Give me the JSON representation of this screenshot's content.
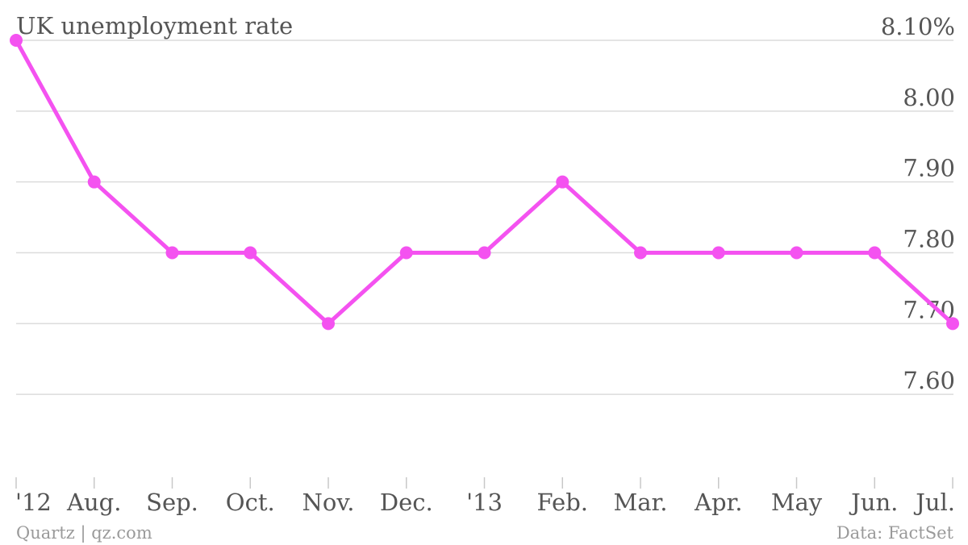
{
  "chart_data": {
    "type": "line",
    "title": "UK unemployment rate",
    "categories": [
      "'12",
      "Aug.",
      "Sep.",
      "Oct.",
      "Nov.",
      "Dec.",
      "'13",
      "Feb.",
      "Mar.",
      "Apr.",
      "May",
      "Jun.",
      "Jul."
    ],
    "values": [
      8.1,
      7.9,
      7.8,
      7.8,
      7.7,
      7.8,
      7.8,
      7.9,
      7.8,
      7.8,
      7.8,
      7.8,
      7.7
    ],
    "ylim": [
      7.5,
      8.1
    ],
    "yticks": [
      {
        "value": 8.1,
        "label": "8.10%"
      },
      {
        "value": 8.0,
        "label": "8.00"
      },
      {
        "value": 7.9,
        "label": "7.90"
      },
      {
        "value": 7.8,
        "label": "7.80"
      },
      {
        "value": 7.7,
        "label": "7.70"
      },
      {
        "value": 7.6,
        "label": "7.60"
      }
    ],
    "grid": true,
    "y_axis_position": "right",
    "series_color": "#f452f0"
  },
  "footer": {
    "source_left": "Quartz | qz.com",
    "source_right": "Data: FactSet"
  }
}
